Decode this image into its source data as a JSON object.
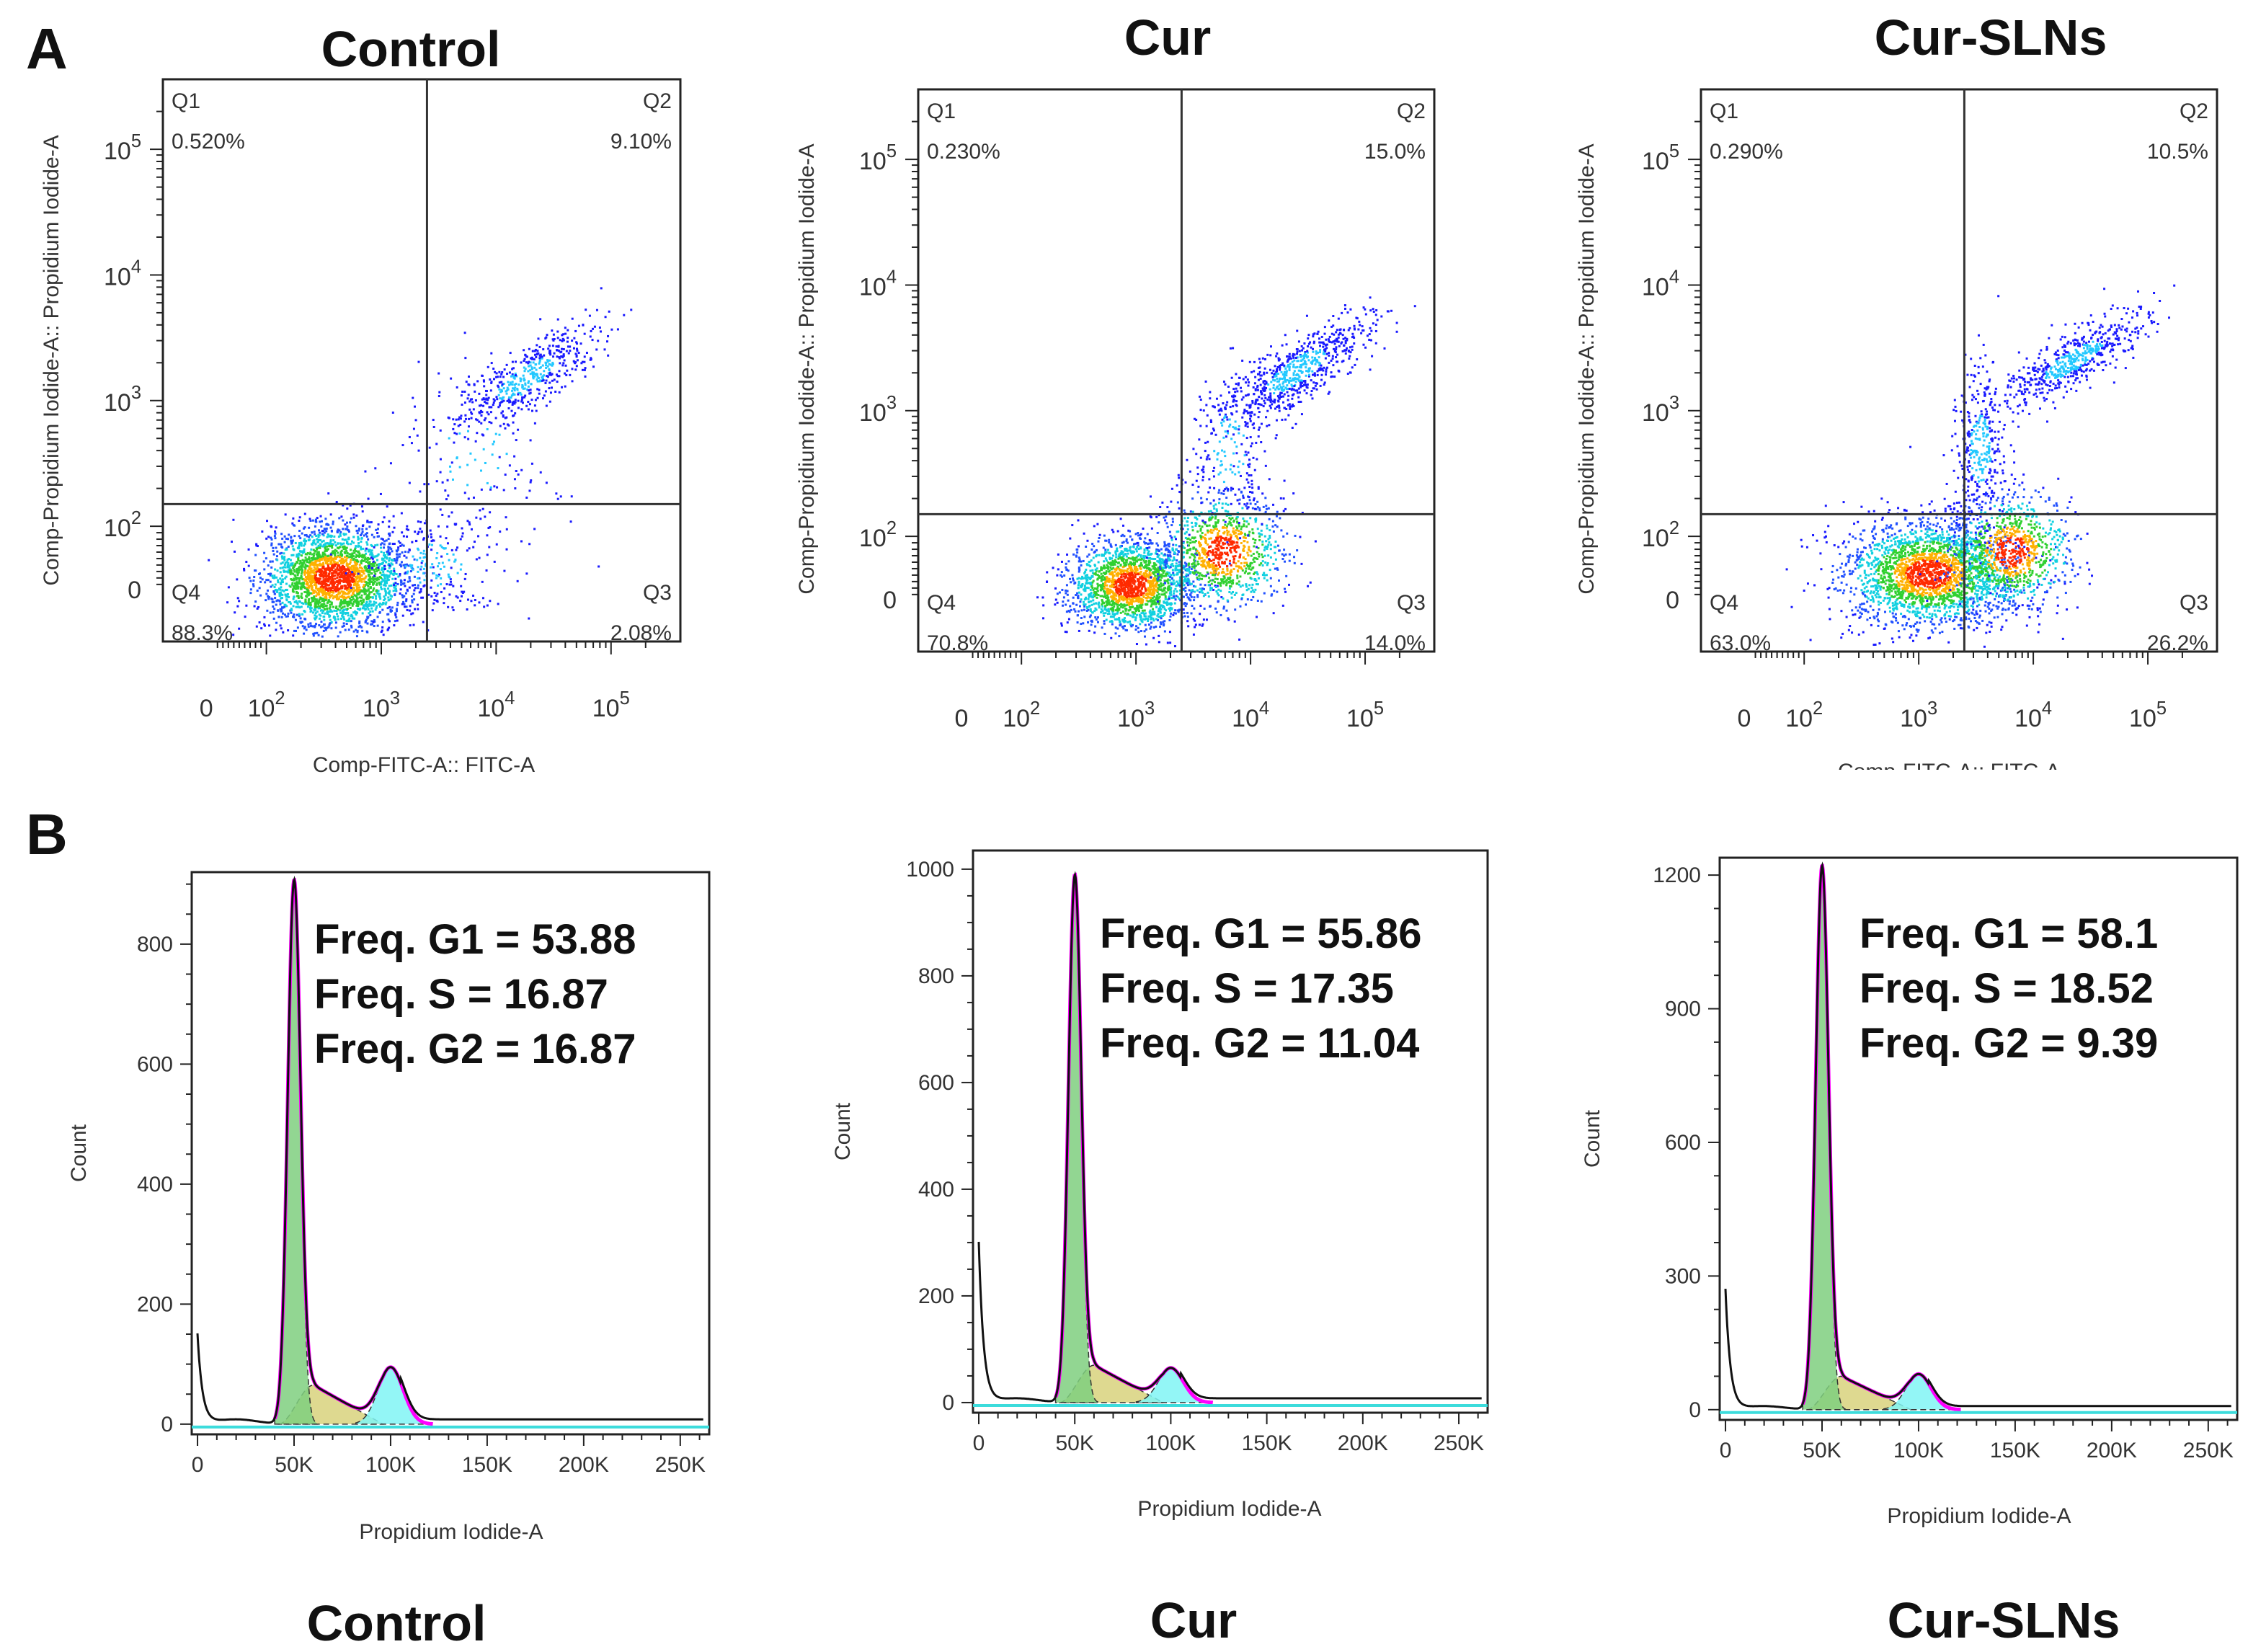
{
  "panel_labels": {
    "a": "A",
    "b": "B"
  },
  "chart_data": [
    {
      "type": "scatter",
      "title": "Control",
      "xlabel": "Comp-FITC-A:: FITC-A",
      "ylabel": "Comp-Propidium Iodide-A:: Propidium Iodide-A",
      "xticks": [
        "0",
        "10^2",
        "10^3",
        "10^4",
        "10^5"
      ],
      "yticks": [
        "0",
        "10^2",
        "10^3",
        "10^4",
        "10^5"
      ],
      "scale": "biexponential",
      "gate": {
        "x": 2500,
        "y": 150
      },
      "quadrants": [
        {
          "name": "Q1",
          "value": "0.520%"
        },
        {
          "name": "Q2",
          "value": "9.10%"
        },
        {
          "name": "Q3",
          "value": "2.08%"
        },
        {
          "name": "Q4",
          "value": "88.3%"
        }
      ]
    },
    {
      "type": "scatter",
      "title": "Cur",
      "xlabel": "",
      "ylabel": "Comp-Propidium Iodide-A:: Propidium Iodide-A",
      "xticks": [
        "0",
        "10^2",
        "10^3",
        "10^4",
        "10^5"
      ],
      "yticks": [
        "0",
        "10^2",
        "10^3",
        "10^4",
        "10^5"
      ],
      "scale": "biexponential",
      "gate": {
        "x": 2500,
        "y": 150
      },
      "quadrants": [
        {
          "name": "Q1",
          "value": "0.230%"
        },
        {
          "name": "Q2",
          "value": "15.0%"
        },
        {
          "name": "Q3",
          "value": "14.0%"
        },
        {
          "name": "Q4",
          "value": "70.8%"
        }
      ]
    },
    {
      "type": "scatter",
      "title": "Cur-SLNs",
      "xlabel": "Comp-FITC-A:: FITC-A",
      "ylabel": "Comp-Propidium Iodide-A:: Propidium Iodide-A",
      "xticks": [
        "0",
        "10^2",
        "10^3",
        "10^4",
        "10^5"
      ],
      "yticks": [
        "0",
        "10^2",
        "10^3",
        "10^4",
        "10^5"
      ],
      "scale": "biexponential",
      "gate": {
        "x": 2500,
        "y": 150
      },
      "quadrants": [
        {
          "name": "Q1",
          "value": "0.290%"
        },
        {
          "name": "Q2",
          "value": "10.5%"
        },
        {
          "name": "Q3",
          "value": "26.2%"
        },
        {
          "name": "Q4",
          "value": "63.0%"
        }
      ]
    },
    {
      "type": "area",
      "title": "Control",
      "xlabel": "Propidium Iodide-A",
      "ylabel": "Count",
      "xticks": [
        0,
        50000,
        100000,
        150000,
        200000,
        250000
      ],
      "xtick_labels": [
        "0",
        "50K",
        "100K",
        "150K",
        "200K",
        "250K"
      ],
      "yticks": [
        0,
        200,
        400,
        600,
        800
      ],
      "ylim": [
        -17,
        920
      ],
      "xlim": [
        -3000,
        265000
      ],
      "freq": {
        "g1": "Freq. G1  = 53.88",
        "s": "Freq. S = 16.87",
        "g2": "Freq. G2  = 16.87"
      },
      "peaks": {
        "g1_pos": 50000,
        "g1_height": 880,
        "s_height": 65,
        "g2_pos": 100000,
        "g2_height": 95,
        "debris": 150
      }
    },
    {
      "type": "area",
      "title": "Cur",
      "xlabel": "Propidium Iodide-A",
      "ylabel": "Count",
      "xticks": [
        0,
        50000,
        100000,
        150000,
        200000,
        250000
      ],
      "xtick_labels": [
        "0",
        "50K",
        "100K",
        "150K",
        "200K",
        "250K"
      ],
      "yticks": [
        0,
        200,
        400,
        600,
        800,
        1000
      ],
      "ylim": [
        -19,
        1035
      ],
      "xlim": [
        -3000,
        265000
      ],
      "freq": {
        "g1": "Freq. G1  = 55.86",
        "s": "Freq. S = 17.35",
        "g2": "Freq. G2  = 11.04"
      },
      "peaks": {
        "g1_pos": 50000,
        "g1_height": 960,
        "s_height": 70,
        "g2_pos": 100000,
        "g2_height": 65,
        "debris": 300
      }
    },
    {
      "type": "area",
      "title": "Cur-SLNs",
      "xlabel": "Propidium Iodide-A",
      "ylabel": "Count",
      "xticks": [
        0,
        50000,
        100000,
        150000,
        200000,
        250000
      ],
      "xtick_labels": [
        "0",
        "50K",
        "100K",
        "150K",
        "200K",
        "250K"
      ],
      "yticks": [
        0,
        300,
        600,
        900,
        1200
      ],
      "ylim": [
        -23,
        1239
      ],
      "xlim": [
        -3000,
        265000
      ],
      "freq": {
        "g1": "Freq. G1  = 58.1",
        "s": "Freq. S = 18.52",
        "g2": "Freq. G2  = 9.39"
      },
      "peaks": {
        "g1_pos": 50000,
        "g1_height": 1190,
        "s_height": 75,
        "g2_pos": 100000,
        "g2_height": 80,
        "debris": 270
      }
    }
  ],
  "colors": {
    "g1": "#7fcf7f",
    "s": "#d8d27c",
    "g2": "#80f4f4",
    "model": "#ff00ff",
    "total": "#111111",
    "dots": "#1a1aff"
  }
}
